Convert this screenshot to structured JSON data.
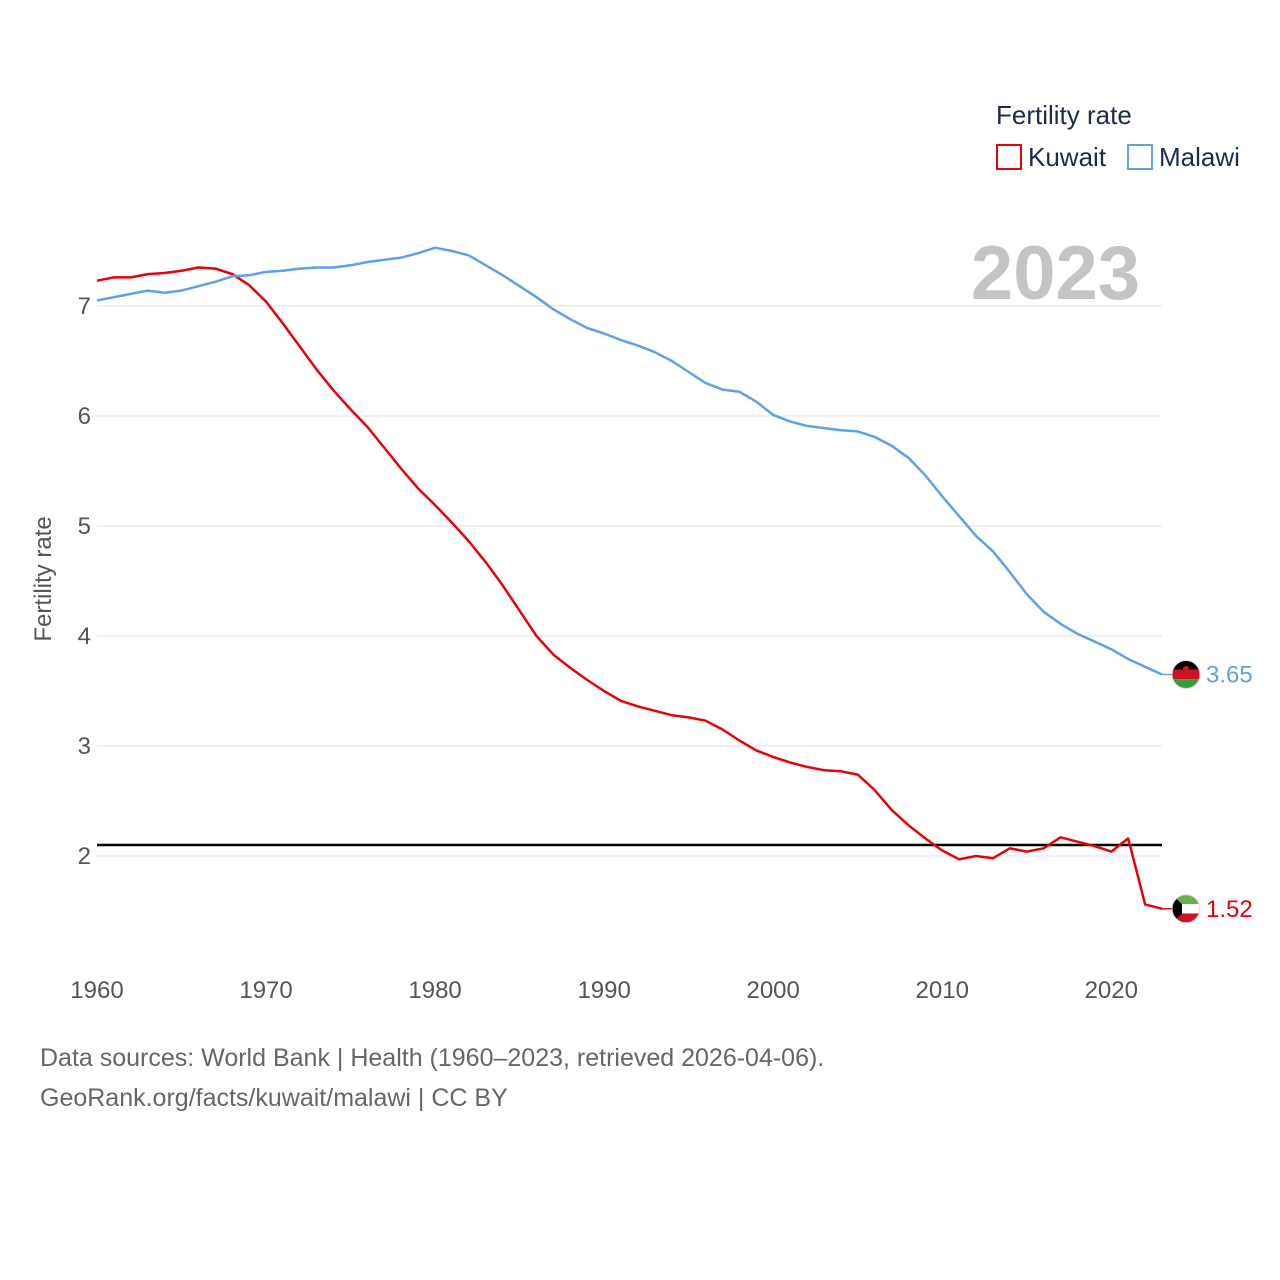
{
  "chart_data": {
    "type": "line",
    "title": "2023",
    "xlabel": "",
    "ylabel": "Fertility rate",
    "xlim": [
      1960,
      2023
    ],
    "ylim": [
      1.0,
      7.9
    ],
    "xticks": [
      1960,
      1970,
      1980,
      1990,
      2000,
      2010,
      2020
    ],
    "yticks": [
      2,
      3,
      4,
      5,
      6,
      7
    ],
    "grid": true,
    "legend_title": "Fertility rate",
    "legend_position": "top-right",
    "reference_line": {
      "y": 2.1
    },
    "x": [
      1960,
      1961,
      1962,
      1963,
      1964,
      1965,
      1966,
      1967,
      1968,
      1969,
      1970,
      1971,
      1972,
      1973,
      1974,
      1975,
      1976,
      1977,
      1978,
      1979,
      1980,
      1981,
      1982,
      1983,
      1984,
      1985,
      1986,
      1987,
      1988,
      1989,
      1990,
      1991,
      1992,
      1993,
      1994,
      1995,
      1996,
      1997,
      1998,
      1999,
      2000,
      2001,
      2002,
      2003,
      2004,
      2005,
      2006,
      2007,
      2008,
      2009,
      2010,
      2011,
      2012,
      2013,
      2014,
      2015,
      2016,
      2017,
      2018,
      2019,
      2020,
      2021,
      2022,
      2023
    ],
    "series": [
      {
        "name": "Kuwait",
        "color": "#e8000b",
        "end_label": "1.52",
        "flag_icon": "kuwait-flag-icon",
        "values": [
          7.23,
          7.26,
          7.26,
          7.29,
          7.3,
          7.32,
          7.35,
          7.34,
          7.29,
          7.19,
          7.04,
          6.84,
          6.63,
          6.42,
          6.23,
          6.06,
          5.9,
          5.71,
          5.52,
          5.34,
          5.19,
          5.03,
          4.86,
          4.67,
          4.46,
          4.23,
          4.0,
          3.83,
          3.71,
          3.6,
          3.5,
          3.41,
          3.36,
          3.32,
          3.28,
          3.26,
          3.23,
          3.15,
          3.05,
          2.96,
          2.9,
          2.85,
          2.81,
          2.78,
          2.77,
          2.74,
          2.6,
          2.42,
          2.28,
          2.16,
          2.05,
          1.97,
          2.0,
          1.98,
          2.07,
          2.04,
          2.07,
          2.17,
          2.13,
          2.09,
          2.04,
          2.16,
          1.56,
          1.52
        ]
      },
      {
        "name": "Malawi",
        "color": "#5ba3e6",
        "end_label": "3.65",
        "flag_icon": "malawi-flag-icon",
        "values": [
          7.05,
          7.08,
          7.11,
          7.14,
          7.12,
          7.14,
          7.18,
          7.22,
          7.27,
          7.28,
          7.31,
          7.32,
          7.34,
          7.35,
          7.35,
          7.37,
          7.4,
          7.42,
          7.44,
          7.48,
          7.53,
          7.5,
          7.46,
          7.37,
          7.28,
          7.18,
          7.08,
          6.97,
          6.88,
          6.8,
          6.75,
          6.69,
          6.64,
          6.58,
          6.5,
          6.4,
          6.3,
          6.24,
          6.22,
          6.13,
          6.01,
          5.95,
          5.91,
          5.89,
          5.87,
          5.86,
          5.81,
          5.73,
          5.62,
          5.46,
          5.27,
          5.09,
          4.91,
          4.77,
          4.58,
          4.38,
          4.22,
          4.11,
          4.02,
          3.95,
          3.88,
          3.79,
          3.72,
          3.65
        ]
      }
    ]
  },
  "source": {
    "line1": "Data sources: World Bank | Health (1960–2023, retrieved 2026-04-06).",
    "line2": "GeoRank.org/facts/kuwait/malawi | CC BY"
  }
}
